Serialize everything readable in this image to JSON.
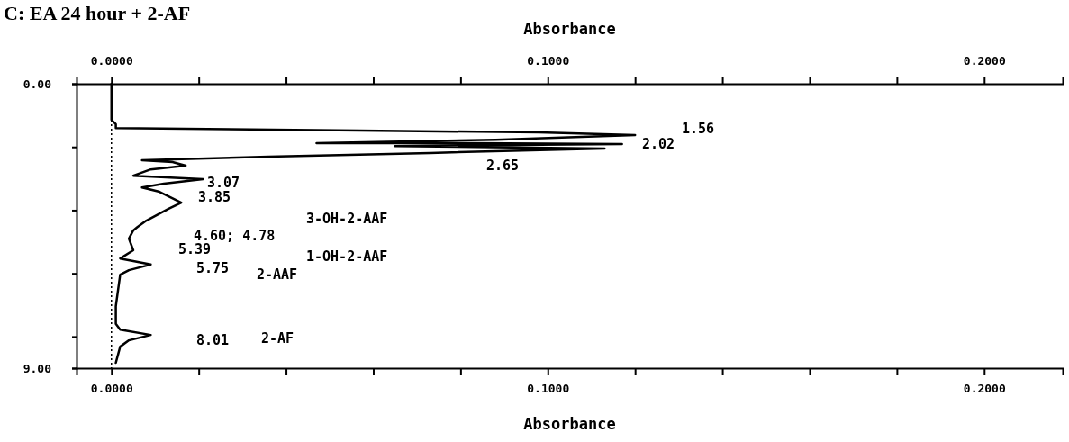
{
  "chart_data": {
    "type": "line",
    "title": "C: EA 24 hour + 2-AF",
    "xlabel": "Absorbance",
    "x2label": "Absorbance",
    "xlim": [
      -0.008,
      0.218
    ],
    "xticks": [
      {
        "value": 0,
        "label": "0.0000"
      },
      {
        "value": 0.02,
        "label": null
      },
      {
        "value": 0.04,
        "label": null
      },
      {
        "value": 0.06,
        "label": null
      },
      {
        "value": 0.08,
        "label": null
      },
      {
        "value": 0.1,
        "label": "0.1000"
      },
      {
        "value": 0.12,
        "label": null
      },
      {
        "value": 0.14,
        "label": null
      },
      {
        "value": 0.16,
        "label": null
      },
      {
        "value": 0.18,
        "label": null
      },
      {
        "value": 0.2,
        "label": "0.2000"
      }
    ],
    "x2lim": [
      -0.008,
      0.218
    ],
    "x2ticks": [
      {
        "value": 0,
        "label": "0.0000"
      },
      {
        "value": 0.02,
        "label": null
      },
      {
        "value": 0.04,
        "label": null
      },
      {
        "value": 0.06,
        "label": null
      },
      {
        "value": 0.08,
        "label": null
      },
      {
        "value": 0.1,
        "label": "0.1000"
      },
      {
        "value": 0.12,
        "label": null
      },
      {
        "value": 0.14,
        "label": null
      },
      {
        "value": 0.16,
        "label": null
      },
      {
        "value": 0.18,
        "label": null
      },
      {
        "value": 0.2,
        "label": "0.2000"
      }
    ],
    "ylim": [
      9,
      0
    ],
    "yticks": [
      {
        "value": 0,
        "label": "0.00"
      },
      {
        "value": 2,
        "label": null
      },
      {
        "value": 4,
        "label": null
      },
      {
        "value": 6,
        "label": null
      },
      {
        "value": 8,
        "label": null
      },
      {
        "value": 9,
        "label": "9.00"
      }
    ],
    "grid": false,
    "marker": "none",
    "line_style": "solid",
    "ref_lines": [
      {
        "axis": "x",
        "value": 0,
        "line_style": "dotted",
        "color": "#000000"
      }
    ],
    "series": [
      {
        "color": "#000000",
        "x": [
          0,
          0,
          0.001,
          0.001,
          0.057,
          0.098,
          0.12,
          0.088,
          0.047,
          0.082,
          0.117,
          0.065,
          0.113,
          0.073,
          0.036,
          0.007,
          0.014,
          0.017,
          0.009,
          0.005,
          0.021,
          0.012,
          0.007,
          0.011,
          0.016,
          0.013,
          0.008,
          0.006,
          0.005,
          0.004,
          0.005,
          0.002,
          0.005,
          0.009,
          0.004,
          0.002,
          0.001,
          0.001,
          0.002,
          0.009,
          0.004,
          0.002,
          0.001
        ],
        "values": [
          0,
          1.14,
          1.28,
          1.4,
          1.48,
          1.54,
          1.62,
          1.77,
          1.88,
          1.88,
          1.91,
          1.97,
          2.05,
          2.19,
          2.31,
          2.42,
          2.48,
          2.59,
          2.71,
          2.91,
          3.02,
          3.16,
          3.28,
          3.42,
          3.76,
          3.96,
          4.33,
          4.53,
          4.64,
          4.9,
          5.27,
          5.53,
          5.61,
          5.72,
          5.9,
          6.04,
          7.04,
          7.6,
          7.78,
          7.95,
          8.12,
          8.32,
          8.83
        ]
      }
    ],
    "annotations": [
      "1.56",
      "2.02",
      "2.65",
      "3.07",
      "3.85",
      "4.60; 4.78",
      "5.39",
      "5.75",
      "8.01",
      "3-OH-2-AAF",
      "1-OH-2-AAF",
      "2-AAF",
      "2-AF"
    ]
  }
}
